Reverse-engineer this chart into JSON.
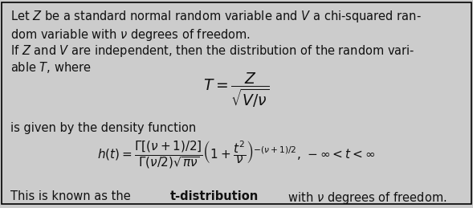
{
  "background_color": "#cccccc",
  "border_color": "#000000",
  "border_linewidth": 1.2,
  "fig_width": 5.89,
  "fig_height": 2.59,
  "dpi": 100,
  "text_color": "#111111",
  "line1": "Let $Z$ be a standard normal random variable and $V$ a chi-squared ran-",
  "line2": "dom variable with $\\nu$ degrees of freedom.",
  "line3": "If $Z$ and $V$ are independent, then the distribution of the random vari-",
  "line4": "able $T$, where",
  "eq1": "$T = \\dfrac{Z}{\\sqrt{V/\\nu}}$",
  "line5": "is given by the density function",
  "eq2": "$h(t) = \\dfrac{\\Gamma\\left[(\\nu+1)/2\\right]}{\\Gamma(\\nu/2)\\sqrt{\\pi\\nu}}\\left(1+\\dfrac{t^2}{\\nu}\\right)^{-(\\nu+1)/2},\\,-\\infty < t < \\infty$",
  "line6_plain": "This is known as the ",
  "line6_bold": "t-distribution",
  "line6_end": " with $\\nu$ degrees of freedom.",
  "fontsize_text": 10.5,
  "fontsize_eq1": 13.5,
  "fontsize_eq2": 11.0
}
